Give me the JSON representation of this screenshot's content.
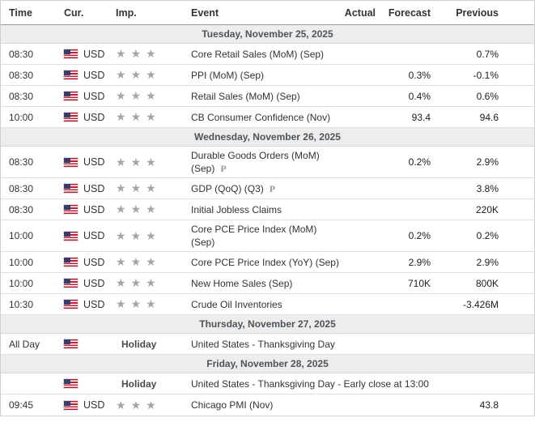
{
  "theme": {
    "flag_red": "#B22234",
    "flag_blue": "#3C3B6E",
    "star_gray": "#A5A5A5",
    "day_band_bg": "#EDEDED",
    "day_band_text": "#4C545C"
  },
  "table": {
    "columns": {
      "time": "Time",
      "cur": "Cur.",
      "imp": "Imp.",
      "event": "Event",
      "actual": "Actual",
      "forecast": "Forecast",
      "previous": "Previous"
    },
    "icons": {
      "star": "★",
      "preliminary": "P",
      "flag": "us-flag"
    },
    "sections": [
      {
        "date": "Tuesday, November 25, 2025",
        "rows": [
          {
            "time": "08:30",
            "currency": "USD",
            "stars": 3,
            "holiday": false,
            "importance": "",
            "event": "Core Retail Sales (MoM) (Sep)",
            "preliminary": false,
            "actual": "",
            "forecast": "",
            "previous": "0.7%"
          },
          {
            "time": "08:30",
            "currency": "USD",
            "stars": 3,
            "holiday": false,
            "importance": "",
            "event": "PPI (MoM) (Sep)",
            "preliminary": false,
            "actual": "",
            "forecast": "0.3%",
            "previous": "-0.1%"
          },
          {
            "time": "08:30",
            "currency": "USD",
            "stars": 3,
            "holiday": false,
            "importance": "",
            "event": "Retail Sales (MoM) (Sep)",
            "preliminary": false,
            "actual": "",
            "forecast": "0.4%",
            "previous": "0.6%"
          },
          {
            "time": "10:00",
            "currency": "USD",
            "stars": 3,
            "holiday": false,
            "importance": "",
            "event": "CB Consumer Confidence (Nov)",
            "preliminary": false,
            "actual": "",
            "forecast": "93.4",
            "previous": "94.6"
          }
        ]
      },
      {
        "date": "Wednesday, November 26, 2025",
        "rows": [
          {
            "time": "08:30",
            "currency": "USD",
            "stars": 3,
            "holiday": false,
            "importance": "",
            "event": "Durable Goods Orders (MoM) (Sep)",
            "preliminary": true,
            "actual": "",
            "forecast": "0.2%",
            "previous": "2.9%"
          },
          {
            "time": "08:30",
            "currency": "USD",
            "stars": 3,
            "holiday": false,
            "importance": "",
            "event": "GDP (QoQ) (Q3)",
            "preliminary": true,
            "actual": "",
            "forecast": "",
            "previous": "3.8%"
          },
          {
            "time": "08:30",
            "currency": "USD",
            "stars": 3,
            "holiday": false,
            "importance": "",
            "event": "Initial Jobless Claims",
            "preliminary": false,
            "actual": "",
            "forecast": "",
            "previous": "220K"
          },
          {
            "time": "10:00",
            "currency": "USD",
            "stars": 3,
            "holiday": false,
            "importance": "",
            "event": "Core PCE Price Index (MoM) (Sep)",
            "preliminary": false,
            "actual": "",
            "forecast": "0.2%",
            "previous": "0.2%"
          },
          {
            "time": "10:00",
            "currency": "USD",
            "stars": 3,
            "holiday": false,
            "importance": "",
            "event": "Core PCE Price Index (YoY) (Sep)",
            "preliminary": false,
            "actual": "",
            "forecast": "2.9%",
            "previous": "2.9%"
          },
          {
            "time": "10:00",
            "currency": "USD",
            "stars": 3,
            "holiday": false,
            "importance": "",
            "event": "New Home Sales (Sep)",
            "preliminary": false,
            "actual": "",
            "forecast": "710K",
            "previous": "800K"
          },
          {
            "time": "10:30",
            "currency": "USD",
            "stars": 3,
            "holiday": false,
            "importance": "",
            "event": "Crude Oil Inventories",
            "preliminary": false,
            "actual": "",
            "forecast": "",
            "previous": "-3.426M"
          }
        ]
      },
      {
        "date": "Thursday, November 27, 2025",
        "rows": [
          {
            "time": "All Day",
            "currency": "",
            "stars": 0,
            "holiday": true,
            "importance": "Holiday",
            "event": "United States - Thanksgiving Day",
            "preliminary": false,
            "actual": "",
            "forecast": "",
            "previous": ""
          }
        ]
      },
      {
        "date": "Friday, November 28, 2025",
        "rows": [
          {
            "time": "",
            "currency": "",
            "stars": 0,
            "holiday": true,
            "importance": "Holiday",
            "event": "United States - Thanksgiving Day - Early close at 13:00",
            "preliminary": false,
            "actual": "",
            "forecast": "",
            "previous": ""
          },
          {
            "time": "09:45",
            "currency": "USD",
            "stars": 3,
            "holiday": false,
            "importance": "",
            "event": "Chicago PMI (Nov)",
            "preliminary": false,
            "actual": "",
            "forecast": "",
            "previous": "43.8"
          }
        ]
      }
    ]
  }
}
